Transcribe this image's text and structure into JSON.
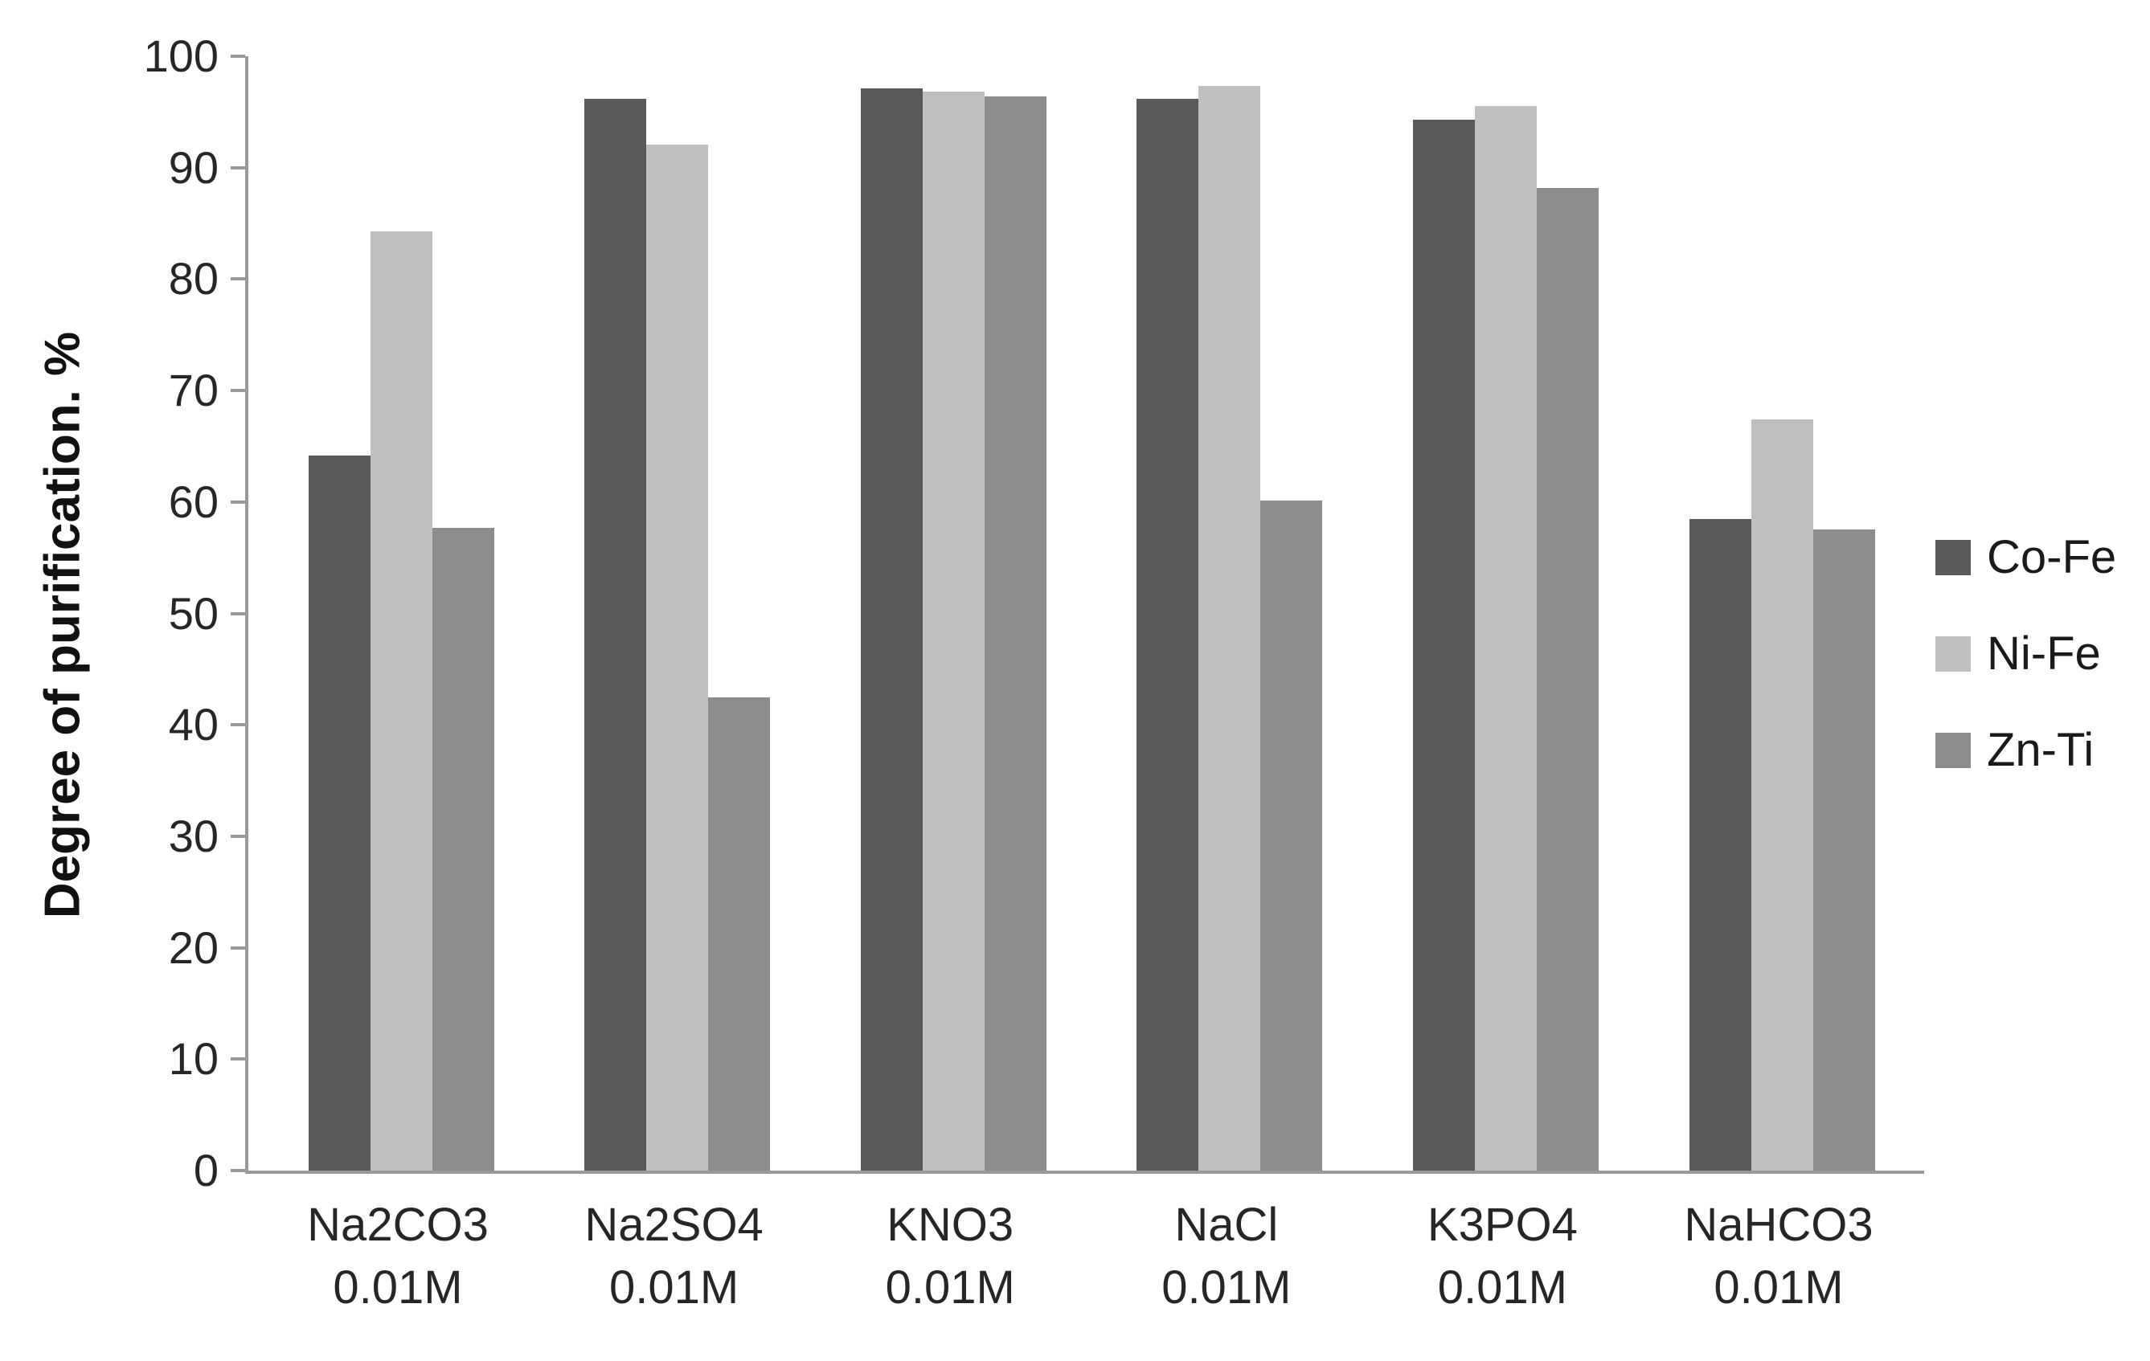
{
  "chart_data": {
    "type": "bar",
    "title": "",
    "xlabel": "",
    "ylabel": "Degree of purification. %",
    "categories": [
      {
        "label": "Na2CO3",
        "sublabel": "0.01M"
      },
      {
        "label": "Na2SO4",
        "sublabel": "0.01M"
      },
      {
        "label": "KNO3",
        "sublabel": "0.01M"
      },
      {
        "label": "NaCl",
        "sublabel": "0.01M"
      },
      {
        "label": "K3PO4",
        "sublabel": "0.01M"
      },
      {
        "label": "NaHCO3",
        "sublabel": "0.01M"
      }
    ],
    "series": [
      {
        "name": "Co-Fe",
        "color": "#595959",
        "values": [
          64.2,
          96.2,
          97.1,
          96.2,
          94.3,
          58.5
        ]
      },
      {
        "name": "Ni-Fe",
        "color": "#bfbfbf",
        "values": [
          84.3,
          92.1,
          96.8,
          97.3,
          95.5,
          67.4
        ]
      },
      {
        "name": "Zn-Ti",
        "color": "#8c8c8c",
        "values": [
          57.7,
          42.5,
          96.4,
          60.1,
          88.2,
          57.5
        ]
      }
    ],
    "ylim": [
      0,
      100
    ],
    "yticks": [
      0,
      10,
      20,
      30,
      40,
      50,
      60,
      70,
      80,
      90,
      100
    ],
    "grid": false,
    "legend_position": "right",
    "axis_line_color": "#999999",
    "tick_text_color": "#262626"
  }
}
